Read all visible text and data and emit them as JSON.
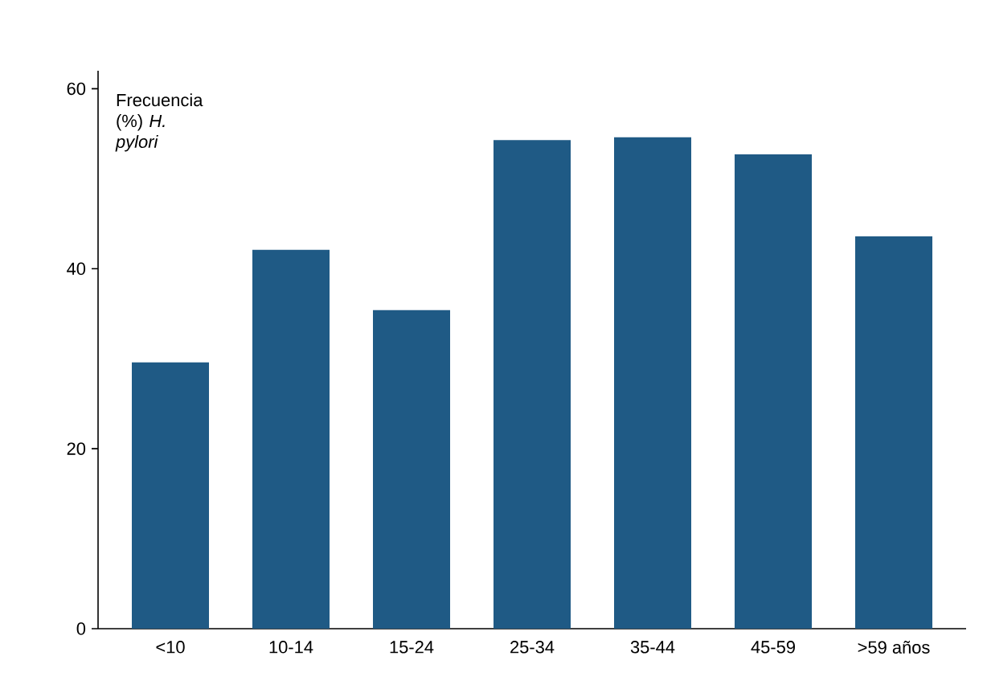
{
  "chart_data": {
    "type": "bar",
    "ylabel": "Frecuencia (%) *H. pylori*",
    "categories": [
      "<10",
      "10-14",
      "15-24",
      "25-34",
      "35-44",
      "45-59",
      ">59 años"
    ],
    "values": [
      29.6,
      42.1,
      35.4,
      54.3,
      54.6,
      52.7,
      43.6
    ],
    "color": "#1f5a85",
    "ylim": [
      0,
      62
    ],
    "yticks": [
      0,
      20,
      40,
      60
    ],
    "grid": false
  }
}
